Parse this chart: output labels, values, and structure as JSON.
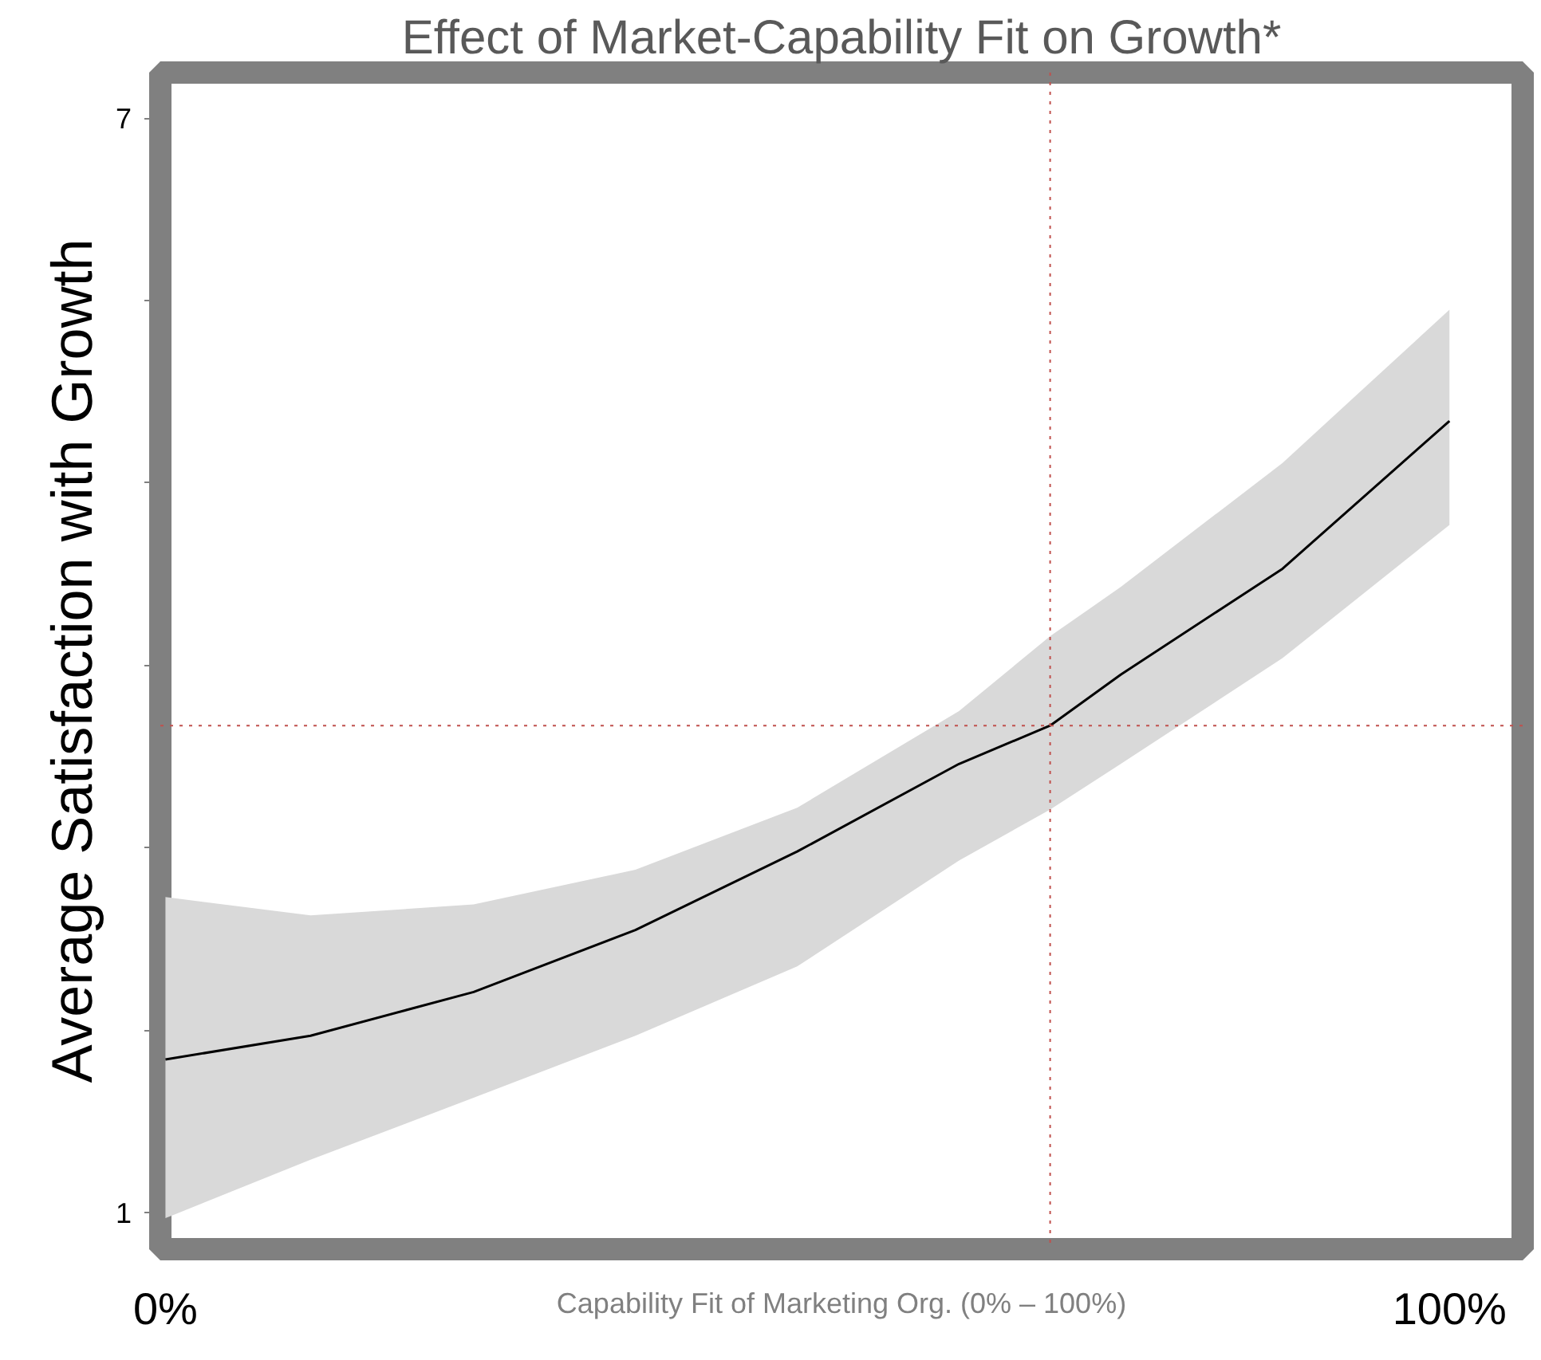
{
  "chart_data": {
    "type": "line",
    "title": "Effect of Market-Capability Fit on Growth*",
    "xlabel": "Capability Fit of Marketing Org. (0% – 100%)",
    "ylabel": "Average Satisfaction with Growth",
    "x": [
      0,
      11.3,
      24,
      36.6,
      49.2,
      61.8,
      68.9,
      74.4,
      87,
      100
    ],
    "series": [
      {
        "color": "#000000",
        "values": [
          1.84,
          1.97,
          2.21,
          2.55,
          2.98,
          3.46,
          3.67,
          3.95,
          4.53,
          5.34
        ],
        "lower": [
          0.97,
          1.29,
          1.63,
          1.97,
          2.35,
          2.93,
          3.21,
          3.46,
          4.04,
          4.77
        ],
        "upper": [
          2.73,
          2.63,
          2.69,
          2.88,
          3.22,
          3.75,
          4.16,
          4.43,
          5.11,
          5.95
        ]
      }
    ],
    "xlim": [
      -0.4,
      105.7
    ],
    "ylim": [
      0.8,
      7.25
    ],
    "xticks": [
      {
        "value": 0,
        "label": "0%"
      },
      {
        "value": 100,
        "label": "100%"
      }
    ],
    "yticks": [
      1,
      {
        "value": 2,
        "label": null
      },
      {
        "value": 3,
        "label": null
      },
      {
        "value": 4,
        "label": null
      },
      {
        "value": 5,
        "label": null
      },
      {
        "value": 6,
        "label": null
      },
      7
    ],
    "ref_lines": [
      {
        "axis": "x",
        "value": 68.9,
        "color": "#c0504d",
        "line_style": "dotted"
      },
      {
        "axis": "y",
        "value": 3.67,
        "color": "#c0504d",
        "line_style": "dotted"
      }
    ],
    "grid": false,
    "line_style": "solid",
    "marker": "none"
  }
}
